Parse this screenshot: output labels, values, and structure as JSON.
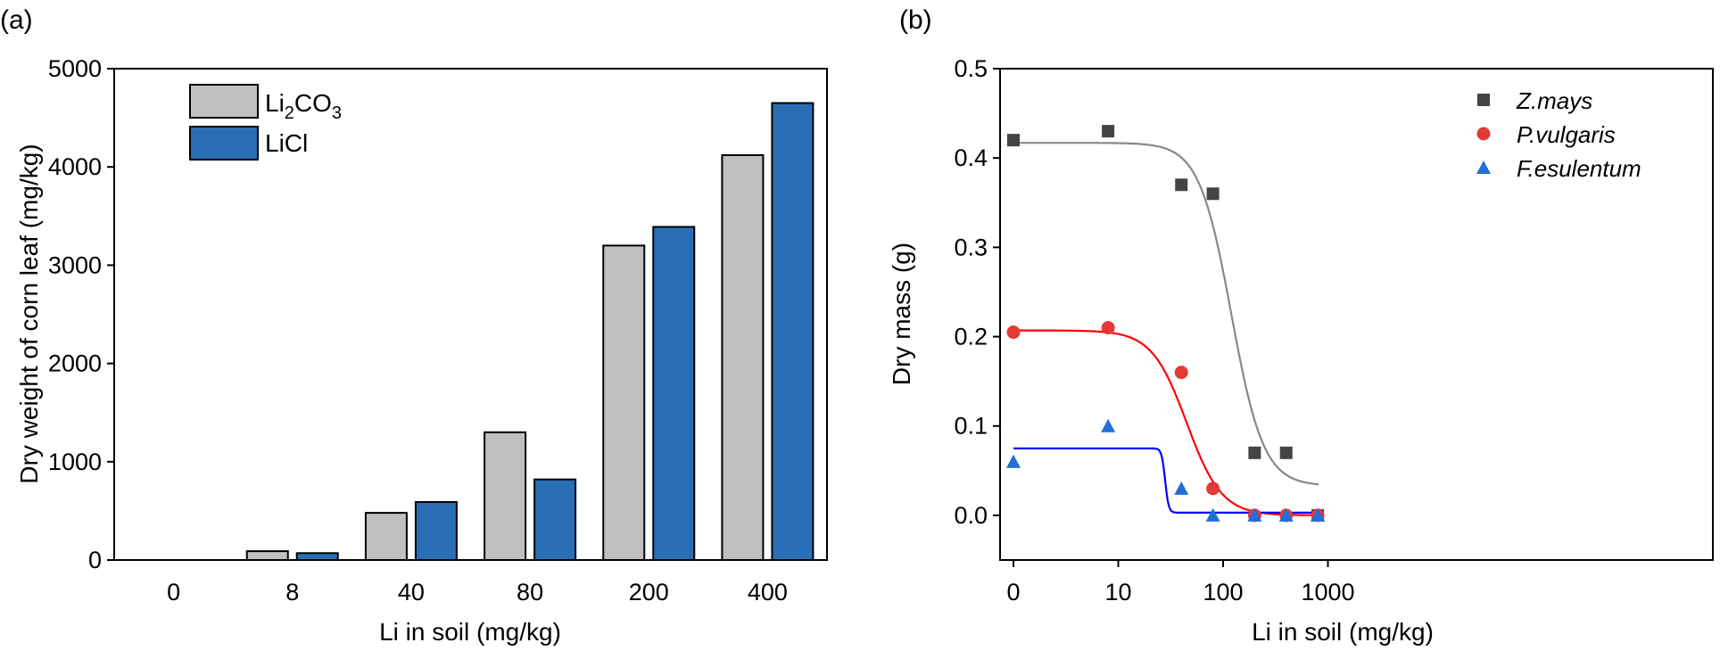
{
  "panels": {
    "a": {
      "label": "(a)"
    },
    "b": {
      "label": "(b)"
    }
  },
  "chart_data": [
    {
      "type": "bar",
      "categories": [
        "0",
        "8",
        "40",
        "80",
        "200",
        "400"
      ],
      "series": [
        {
          "name": "Li2CO3",
          "name_main": "Li",
          "name_sub1": "2",
          "name_mid": "CO",
          "name_sub2": "3",
          "values": [
            0,
            90,
            480,
            1300,
            3200,
            4120
          ],
          "color": "#c0c0c0"
        },
        {
          "name": "LiCl",
          "values": [
            0,
            70,
            590,
            820,
            3390,
            4650
          ],
          "color": "#2a6fb5"
        }
      ],
      "xlabel": "Li in soil (mg/kg)",
      "ylabel": "Dry weight of corn leaf (mg/kg)",
      "ylim": [
        0,
        5000
      ],
      "yticks": [
        "0",
        "1000",
        "2000",
        "3000",
        "4000",
        "5000"
      ],
      "legend_position": "top-left"
    },
    {
      "type": "scatter",
      "xscale": "log",
      "xlabel": "Li in soil (mg/kg)",
      "ylabel": "Dry mass (g)",
      "ylim": [
        -0.05,
        0.5
      ],
      "yticks": [
        "0.0",
        "0.1",
        "0.2",
        "0.3",
        "0.4",
        "0.5"
      ],
      "xticks": [
        "0",
        "10",
        "100",
        "1000"
      ],
      "legend_position": "top-right",
      "series": [
        {
          "name": "Z.mays",
          "marker": "square",
          "color": "#444444",
          "fit_color": "#888888",
          "x": [
            1,
            8,
            40,
            80,
            200,
            400,
            800
          ],
          "y": [
            0.42,
            0.43,
            0.37,
            0.36,
            0.07,
            0.07,
            0.0
          ]
        },
        {
          "name": "P.vulgaris",
          "marker": "circle",
          "color": "#e53935",
          "fit_color": "#ff0000",
          "x": [
            1,
            8,
            40,
            80,
            200,
            400,
            800
          ],
          "y": [
            0.205,
            0.21,
            0.16,
            0.03,
            0.0,
            0.0,
            0.0
          ]
        },
        {
          "name": "F.esulentum",
          "marker": "triangle",
          "color": "#1f6fd6",
          "fit_color": "#0000ff",
          "x": [
            1,
            8,
            40,
            80,
            200,
            400,
            800
          ],
          "y": [
            0.06,
            0.1,
            0.03,
            0.0,
            0.0,
            0.0,
            0.0
          ]
        }
      ]
    }
  ]
}
